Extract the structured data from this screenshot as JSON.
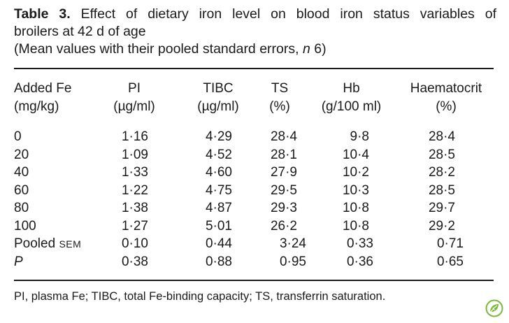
{
  "caption": {
    "label": "Table 3.",
    "title_line1": "Effect of dietary iron level on blood iron status variables of",
    "title_line2": "broilers at 42 d of age",
    "subtitle_prefix": "(Mean values with their pooled standard errors, ",
    "subtitle_n": "n",
    "subtitle_suffix": " 6)"
  },
  "columns": [
    {
      "line1": "Added Fe",
      "line2": "(mg/kg)"
    },
    {
      "line1": "PI",
      "line2": "(µg/ml)"
    },
    {
      "line1": "TIBC",
      "line2": "(µg/ml)"
    },
    {
      "line1": "TS",
      "line2": "(%)"
    },
    {
      "line1": "Hb",
      "line2": "(g/100 ml)"
    },
    {
      "line1": "Haematocrit",
      "line2": "(%)"
    }
  ],
  "rows": [
    {
      "label": "0",
      "pi": "1·16",
      "tibc": "4·29",
      "ts": "28·4",
      "hb": "9·8",
      "hct": "28·4"
    },
    {
      "label": "20",
      "pi": "1·09",
      "tibc": "4·52",
      "ts": "28·1",
      "hb": "10·4",
      "hct": "28·5"
    },
    {
      "label": "40",
      "pi": "1·33",
      "tibc": "4·60",
      "ts": "27·9",
      "hb": "10·2",
      "hct": "28·2"
    },
    {
      "label": "60",
      "pi": "1·22",
      "tibc": "4·75",
      "ts": "29·5",
      "hb": "10·3",
      "hct": "28·5"
    },
    {
      "label": "80",
      "pi": "1·38",
      "tibc": "4·87",
      "ts": "29·3",
      "hb": "10·8",
      "hct": "29·7"
    },
    {
      "label": "100",
      "pi": "1·27",
      "tibc": "5·01",
      "ts": "26·2",
      "hb": "10·8",
      "hct": "29·2"
    }
  ],
  "pooled_sem": {
    "label_prefix": "Pooled ",
    "label_sc": "SEM",
    "pi": "0·10",
    "tibc": "0·44",
    "ts": "3·24",
    "hb": "0·33",
    "hct": "0·71"
  },
  "p_values": {
    "label": "P",
    "pi": "0·38",
    "tibc": "0·88",
    "ts": "0·95",
    "hb": "0·36",
    "hct": "0·65"
  },
  "footnote": "PI, plasma Fe; TIBC, total Fe-binding capacity; TS, transferrin saturation.",
  "colors": {
    "text": "#1a1a1a",
    "logo_green": "#7db83a"
  },
  "logo_icon": "leaf-logo-icon"
}
